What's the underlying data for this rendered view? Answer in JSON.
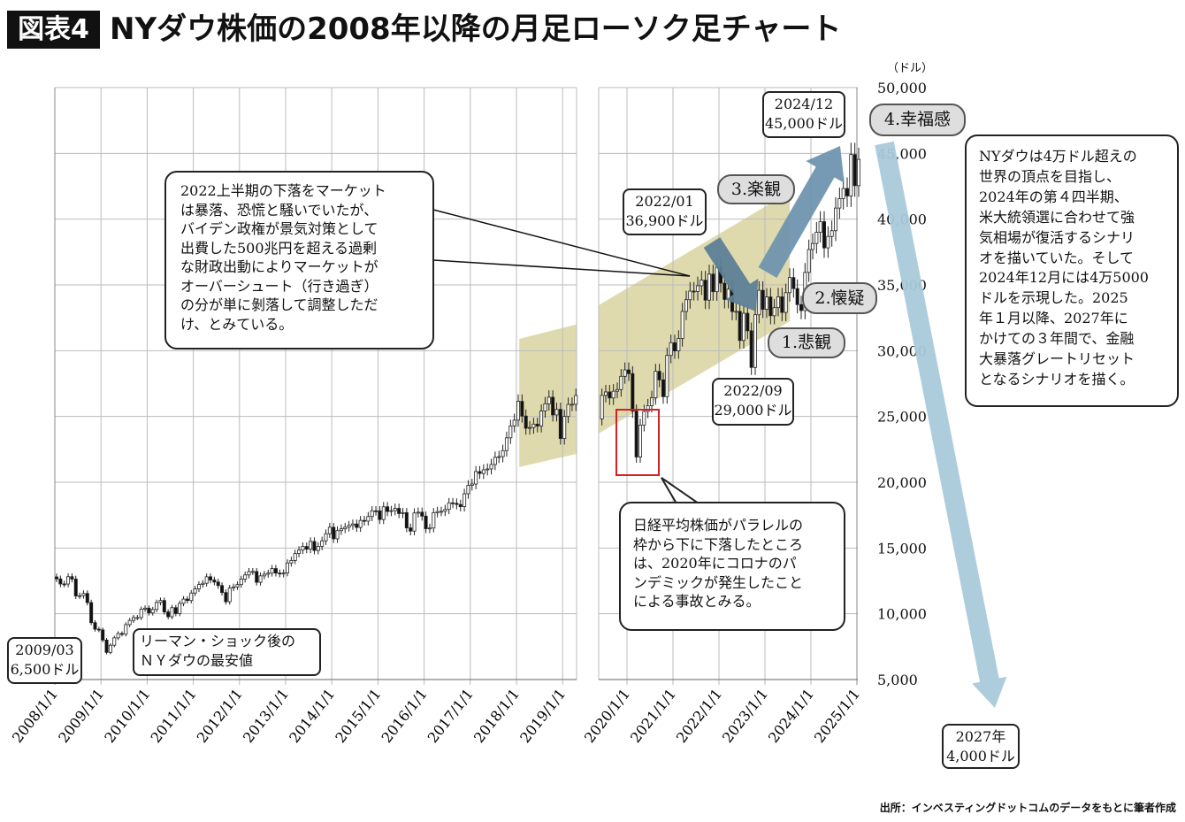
{
  "header": {
    "figure_label": "図表4",
    "title": "NYダウ株価の2008年以降の月足ローソク足チャート"
  },
  "source": "出所：インベスティングドットコムのデータをもとに筆者作成",
  "chart_data": {
    "type": "bar",
    "style": "candlestick",
    "period": "monthly",
    "start": "2008-01",
    "closes": [
      12650,
      12266,
      12262,
      12820,
      12638,
      11350,
      11378,
      11544,
      10850,
      9325,
      8829,
      8776,
      8000,
      7063,
      7609,
      8168,
      8500,
      8447,
      9172,
      9496,
      9712,
      9713,
      10344,
      10428,
      10067,
      10325,
      10857,
      11009,
      10137,
      9774,
      10466,
      10015,
      10788,
      11118,
      11006,
      11578,
      11892,
      12226,
      12320,
      12811,
      12570,
      12414,
      12143,
      11614,
      10913,
      11955,
      12046,
      12218,
      12633,
      12952,
      13212,
      13214,
      12393,
      12880,
      13009,
      13091,
      13437,
      13096,
      13026,
      13104,
      13861,
      14054,
      14579,
      14840,
      15116,
      14910,
      15500,
      14810,
      15130,
      15546,
      16086,
      16577,
      15699,
      16322,
      16458,
      16581,
      16717,
      16827,
      16563,
      17098,
      17043,
      17391,
      17828,
      17823,
      17165,
      18133,
      17776,
      17841,
      18011,
      17620,
      17690,
      16528,
      16285,
      17664,
      17720,
      17425,
      16466,
      16517,
      17685,
      17774,
      17787,
      17930,
      18432,
      18401,
      18308,
      18142,
      19124,
      19763,
      19864,
      20812,
      20663,
      20941,
      21009,
      21350,
      21891,
      21948,
      22405,
      23377,
      24272,
      24719,
      26149,
      25029,
      24103,
      24163,
      24416,
      24271,
      25415,
      25965,
      26458,
      25116,
      25538,
      23327,
      25000,
      25916,
      25929,
      26593,
      24815,
      26600,
      26864,
      26403,
      26917,
      27046,
      28051,
      28538,
      28256,
      25409,
      21917,
      24346,
      25383,
      25813,
      26428,
      28430,
      27782,
      26502,
      29638,
      30606,
      29983,
      30932,
      32982,
      33875,
      34529,
      34503,
      34935,
      35361,
      33844,
      35820,
      34484,
      36338,
      35132,
      33893,
      34678,
      32977,
      32990,
      30775,
      32845,
      31510,
      28726,
      32733,
      34590,
      33147,
      34086,
      32657,
      33274,
      34098,
      32908,
      34408,
      35560,
      34722,
      33508,
      33053,
      35951,
      37690,
      38150,
      38996,
      39807,
      37816,
      38686,
      39119,
      40843,
      41563,
      42330,
      41763,
      44911,
      42544,
      44545
    ],
    "x_tick_labels": [
      "2008/1/1",
      "2009/1/1",
      "2010/1/1",
      "2011/1/1",
      "2012/1/1",
      "2013/1/1",
      "2014/1/1",
      "2015/1/1",
      "2016/1/1",
      "2017/1/1",
      "2018/1/1",
      "2019/1/1",
      "2020/1/1",
      "2021/1/1",
      "2022/1/1",
      "2023/1/1",
      "2024/1/1",
      "2025/1/1"
    ],
    "y_ticks": [
      5000,
      10000,
      15000,
      20000,
      25000,
      30000,
      35000,
      40000,
      45000,
      50000
    ],
    "y_tick_labels": [
      "5,000",
      "10,000",
      "15,000",
      "20,000",
      "25,000",
      "30,000",
      "35,000",
      "40,000",
      "45,000",
      "50,000"
    ],
    "ylabel": "（ドル）",
    "ylim": [
      5000,
      50000
    ],
    "axis_break": "2019",
    "grid": true,
    "channels": [
      {
        "from": 2018.06,
        "to": 2019.3,
        "top": [
          30900,
          32000
        ],
        "bottom": [
          21150,
          22150
        ],
        "color": "#d9d3a0"
      },
      {
        "from": 2019.38,
        "to": 2023.54,
        "top": [
          33450,
          42060
        ],
        "bottom": [
          23700,
          32240
        ],
        "color": "#d9d3a0"
      }
    ],
    "colors": {
      "up_candle": "#ffffff",
      "down_candle": "#111111",
      "arrow_dark": "#5d7f97",
      "arrow_mid": "#6f95af",
      "arrow_light": "#a9cadb",
      "highlight_box": "#d42020",
      "pill": "#dedede"
    }
  },
  "annotations": {
    "low_2009": [
      "2009/03",
      "6,500ドル"
    ],
    "lehman": [
      "リーマン・ショック後の",
      "ＮＹダウの最安値"
    ],
    "peak_2022": [
      "2022/01",
      "36,900ドル"
    ],
    "low_2022": [
      "2022/09",
      "29,000ドル"
    ],
    "peak_2024": [
      "2024/12",
      "45,000ドル"
    ],
    "target_2027": [
      "2027年",
      "4,000ドル"
    ],
    "stage1": "1.悲観",
    "stage2": "2.懐疑",
    "stage3": "3.楽観",
    "stage4": "4.幸福感",
    "callout_2022": [
      "2022上半期の下落をマーケット",
      "は暴落、恐慌と騒いでいたが、",
      "バイデン政権が景気対策として",
      "出費した500兆円を超える過剰",
      "な財政出動によりマーケットが",
      "オーバーシュート（行き過ぎ）",
      "の分が単に剝落して調整しただ",
      "け、とみている。"
    ],
    "callout_covid": [
      "日経平均株価がパラレルの",
      "枠から下に下落したところ",
      "は、2020年にコロナのパ",
      "ンデミックが発生したこと",
      "による事故とみる。"
    ],
    "callout_scenario": [
      "NYダウは4万ドル超えの",
      "世界の頂点を目指し、",
      "2024年の第４四半期、",
      "米大統領選に合わせて強",
      "気相場が復活するシナリ",
      "オを描いていた。そして",
      "2024年12月には4万5000",
      "ドルを示現した。2025",
      "年１月以降、2027年に",
      "かけての３年間で、金融",
      "大暴落グレートリセット",
      "となるシナリオを描く。"
    ]
  }
}
